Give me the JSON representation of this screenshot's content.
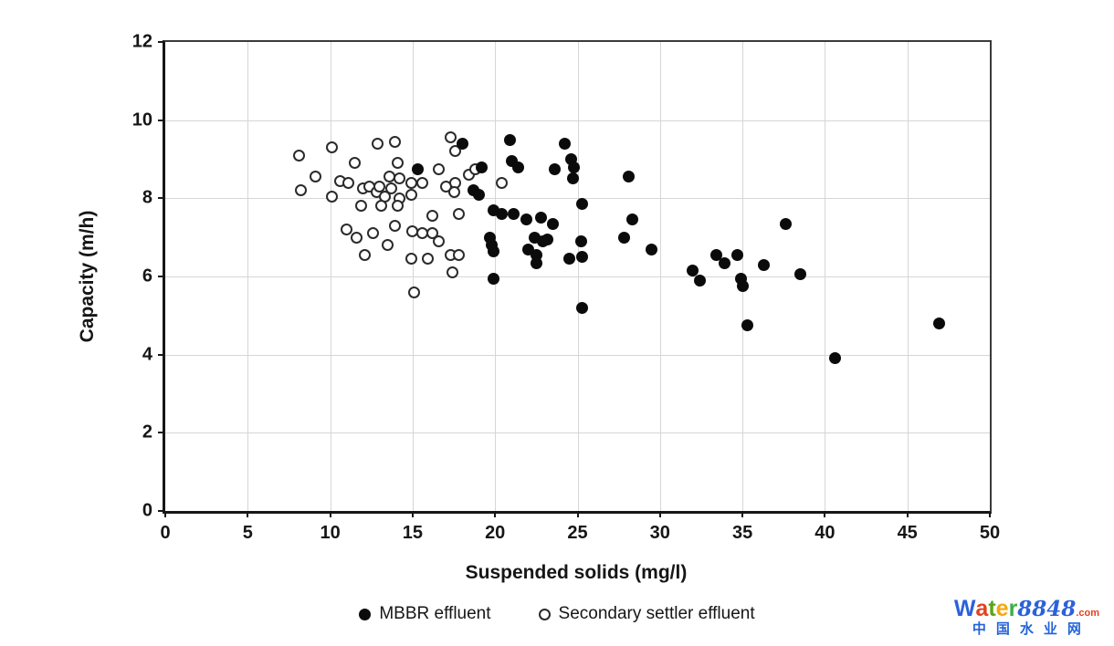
{
  "chart_data": {
    "type": "scatter",
    "title": "",
    "xlabel": "Suspended solids (mg/l)",
    "ylabel": "Capacity (m/h)",
    "xlim": [
      0,
      50
    ],
    "ylim": [
      0,
      12
    ],
    "xticks": [
      0,
      5,
      10,
      15,
      20,
      25,
      30,
      35,
      40,
      45,
      50
    ],
    "yticks": [
      0,
      2,
      4,
      6,
      8,
      10,
      12
    ],
    "grid": true,
    "legend_position": "bottom",
    "series": [
      {
        "name": "MBBR effluent",
        "marker": "filled-circle",
        "color": "#0b0b0b",
        "points": [
          [
            15.3,
            8.75
          ],
          [
            18.0,
            9.4
          ],
          [
            19.2,
            8.8
          ],
          [
            18.7,
            8.2
          ],
          [
            19.0,
            8.1
          ],
          [
            20.9,
            9.5
          ],
          [
            21.0,
            8.95
          ],
          [
            21.4,
            8.8
          ],
          [
            23.6,
            8.75
          ],
          [
            24.2,
            9.4
          ],
          [
            24.6,
            9.0
          ],
          [
            24.8,
            8.8
          ],
          [
            24.7,
            8.5
          ],
          [
            25.3,
            7.85
          ],
          [
            19.9,
            7.7
          ],
          [
            20.4,
            7.6
          ],
          [
            21.1,
            7.6
          ],
          [
            21.9,
            7.45
          ],
          [
            22.8,
            7.5
          ],
          [
            23.5,
            7.35
          ],
          [
            19.7,
            7.0
          ],
          [
            19.8,
            6.8
          ],
          [
            19.9,
            6.65
          ],
          [
            22.4,
            7.0
          ],
          [
            23.2,
            6.95
          ],
          [
            22.9,
            6.9
          ],
          [
            22.0,
            6.7
          ],
          [
            22.5,
            6.55
          ],
          [
            22.5,
            6.35
          ],
          [
            24.5,
            6.45
          ],
          [
            25.2,
            6.9
          ],
          [
            25.3,
            6.5
          ],
          [
            19.9,
            5.95
          ],
          [
            25.3,
            5.2
          ],
          [
            28.1,
            8.55
          ],
          [
            28.3,
            7.45
          ],
          [
            27.8,
            7.0
          ],
          [
            29.5,
            6.7
          ],
          [
            32.0,
            6.15
          ],
          [
            32.4,
            5.9
          ],
          [
            33.4,
            6.55
          ],
          [
            33.9,
            6.35
          ],
          [
            34.7,
            6.55
          ],
          [
            36.3,
            6.3
          ],
          [
            34.9,
            5.95
          ],
          [
            35.0,
            5.75
          ],
          [
            35.3,
            4.75
          ],
          [
            37.6,
            7.35
          ],
          [
            38.5,
            6.05
          ],
          [
            40.6,
            3.9
          ],
          [
            46.9,
            4.8
          ]
        ]
      },
      {
        "name": "Secondary settler effluent",
        "marker": "open-circle",
        "color": "#2b2b2b",
        "points": [
          [
            8.1,
            9.1
          ],
          [
            8.2,
            8.2
          ],
          [
            9.1,
            8.55
          ],
          [
            10.1,
            9.3
          ],
          [
            10.1,
            8.05
          ],
          [
            10.6,
            8.45
          ],
          [
            11.1,
            8.4
          ],
          [
            11.5,
            8.9
          ],
          [
            12.0,
            8.25
          ],
          [
            12.4,
            8.3
          ],
          [
            12.8,
            8.15
          ],
          [
            11.9,
            7.8
          ],
          [
            12.9,
            9.4
          ],
          [
            13.9,
            9.45
          ],
          [
            14.1,
            8.9
          ],
          [
            13.6,
            8.55
          ],
          [
            14.2,
            8.5
          ],
          [
            13.0,
            8.3
          ],
          [
            13.7,
            8.25
          ],
          [
            14.9,
            8.4
          ],
          [
            15.6,
            8.4
          ],
          [
            13.3,
            8.05
          ],
          [
            14.2,
            8.0
          ],
          [
            14.9,
            8.1
          ],
          [
            13.1,
            7.8
          ],
          [
            14.1,
            7.8
          ],
          [
            16.6,
            8.75
          ],
          [
            17.3,
            9.55
          ],
          [
            17.6,
            9.2
          ],
          [
            17.0,
            8.3
          ],
          [
            17.6,
            8.4
          ],
          [
            17.5,
            8.15
          ],
          [
            18.4,
            8.6
          ],
          [
            18.8,
            8.75
          ],
          [
            20.4,
            8.4
          ],
          [
            11.0,
            7.2
          ],
          [
            11.6,
            7.0
          ],
          [
            12.6,
            7.1
          ],
          [
            13.9,
            7.3
          ],
          [
            15.0,
            7.15
          ],
          [
            15.6,
            7.1
          ],
          [
            16.2,
            7.1
          ],
          [
            16.6,
            6.9
          ],
          [
            12.1,
            6.55
          ],
          [
            13.5,
            6.8
          ],
          [
            14.9,
            6.45
          ],
          [
            15.9,
            6.45
          ],
          [
            17.3,
            6.55
          ],
          [
            17.8,
            6.55
          ],
          [
            17.4,
            6.1
          ],
          [
            15.1,
            5.6
          ],
          [
            17.8,
            7.6
          ],
          [
            16.2,
            7.55
          ]
        ]
      }
    ]
  },
  "watermark": {
    "brand": [
      {
        "ch": "W",
        "color": "#2b62d9"
      },
      {
        "ch": "a",
        "color": "#e2421f"
      },
      {
        "ch": "t",
        "color": "#59a618"
      },
      {
        "ch": "e",
        "color": "#f5a70a"
      },
      {
        "ch": "r",
        "color": "#3fae49"
      }
    ],
    "number": "8848",
    "number_color": "#2b62d9",
    "tld": ".com",
    "tld_color": "#e2421f",
    "subtitle": "中国水业网",
    "subtitle_color": "#2464d8"
  }
}
